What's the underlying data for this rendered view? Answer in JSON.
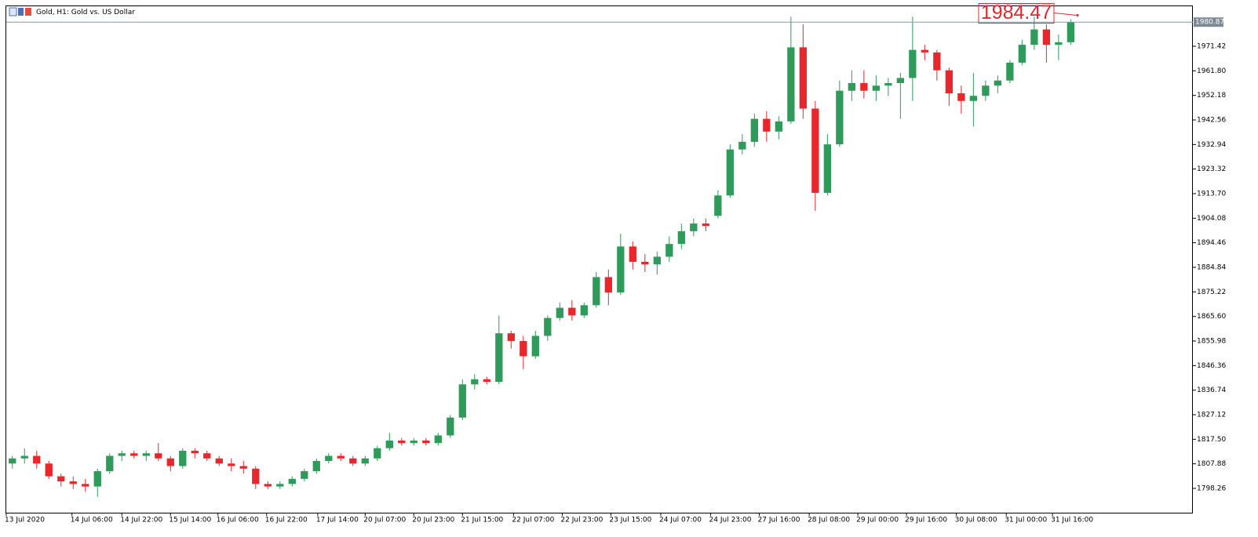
{
  "chart_data": {
    "type": "candlestick",
    "title": "Gold, H1:  Gold vs. US Dollar",
    "up_color": "#2e9b5a",
    "down_color": "#e8262b",
    "grid": false,
    "ylim": [
      1788.74,
      1987.08
    ],
    "yticks": [
      {
        "value": 1798.26,
        "label": "1798.26"
      },
      {
        "value": 1807.88,
        "label": "1807.88"
      },
      {
        "value": 1817.5,
        "label": "1817.50"
      },
      {
        "value": 1827.12,
        "label": "1827.12"
      },
      {
        "value": 1836.74,
        "label": "1836.74"
      },
      {
        "value": 1846.36,
        "label": "1846.36"
      },
      {
        "value": 1855.98,
        "label": "1855.98"
      },
      {
        "value": 1865.6,
        "label": "1865.60"
      },
      {
        "value": 1875.22,
        "label": "1875.22"
      },
      {
        "value": 1884.84,
        "label": "1884.84"
      },
      {
        "value": 1894.46,
        "label": "1894.46"
      },
      {
        "value": 1904.08,
        "label": "1904.08"
      },
      {
        "value": 1913.7,
        "label": "1913.70"
      },
      {
        "value": 1923.32,
        "label": "1923.32"
      },
      {
        "value": 1932.94,
        "label": "1932.94"
      },
      {
        "value": 1942.56,
        "label": "1942.56"
      },
      {
        "value": 1952.18,
        "label": "1952.18"
      },
      {
        "value": 1961.8,
        "label": "1961.80"
      },
      {
        "value": 1971.42,
        "label": "1971.42"
      }
    ],
    "xlim": [
      0,
      88.25
    ],
    "xticks": [
      {
        "value": 0,
        "label": "13 Jul 2020"
      },
      {
        "value": 5.4,
        "label": "14 Jul 06:00"
      },
      {
        "value": 9.5,
        "label": "14 Jul 22:00"
      },
      {
        "value": 13.5,
        "label": "15 Jul 14:00"
      },
      {
        "value": 17.4,
        "label": "16 Jul 06:00"
      },
      {
        "value": 21.4,
        "label": "16 Jul 22:00"
      },
      {
        "value": 25.6,
        "label": "17 Jul 14:00"
      },
      {
        "value": 29.5,
        "label": "20 Jul 07:00"
      },
      {
        "value": 33.5,
        "label": "20 Jul 23:00"
      },
      {
        "value": 37.5,
        "label": "21 Jul 15:00"
      },
      {
        "value": 41.7,
        "label": "22 Jul 07:00"
      },
      {
        "value": 45.7,
        "label": "22 Jul 23:00"
      },
      {
        "value": 49.7,
        "label": "23 Jul 15:00"
      },
      {
        "value": 53.8,
        "label": "24 Jul 07:00"
      },
      {
        "value": 57.9,
        "label": "24 Jul 23:00"
      },
      {
        "value": 61.9,
        "label": "27 Jul 16:00"
      },
      {
        "value": 66,
        "label": "28 Jul 08:00"
      },
      {
        "value": 70,
        "label": "29 Jul 00:00"
      },
      {
        "value": 74,
        "label": "29 Jul 16:00"
      },
      {
        "value": 78.1,
        "label": "30 Jul 08:00"
      },
      {
        "value": 82.2,
        "label": "31 Jul 00:00"
      },
      {
        "value": 86,
        "label": "31 Jul 16:00"
      }
    ],
    "current_price": 1980.87,
    "price_annotation": 1984.47,
    "candles": [
      [
        1808,
        1811,
        1806,
        1810
      ],
      [
        1810,
        1814,
        1808,
        1811
      ],
      [
        1811,
        1813,
        1806,
        1808
      ],
      [
        1808,
        1809,
        1802,
        1803
      ],
      [
        1803,
        1804,
        1799,
        1801
      ],
      [
        1801,
        1803,
        1798,
        1800
      ],
      [
        1800,
        1802,
        1797,
        1799
      ],
      [
        1799,
        1806,
        1795,
        1805
      ],
      [
        1805,
        1812,
        1804,
        1811
      ],
      [
        1811,
        1813,
        1809,
        1812
      ],
      [
        1812,
        1813,
        1810,
        1811
      ],
      [
        1811,
        1813,
        1809,
        1812
      ],
      [
        1812,
        1816,
        1809,
        1810
      ],
      [
        1810,
        1811,
        1805,
        1807
      ],
      [
        1807,
        1814,
        1806,
        1813
      ],
      [
        1813,
        1814,
        1810,
        1812
      ],
      [
        1812,
        1813,
        1809,
        1810
      ],
      [
        1810,
        1811,
        1807,
        1808
      ],
      [
        1808,
        1810,
        1805,
        1807
      ],
      [
        1807,
        1809,
        1804,
        1806
      ],
      [
        1806,
        1807,
        1798,
        1800
      ],
      [
        1800,
        1801,
        1798,
        1799
      ],
      [
        1799,
        1801,
        1798,
        1800
      ],
      [
        1800,
        1803,
        1799,
        1802
      ],
      [
        1802,
        1806,
        1801,
        1805
      ],
      [
        1805,
        1810,
        1804,
        1809
      ],
      [
        1809,
        1812,
        1808,
        1811
      ],
      [
        1811,
        1812,
        1809,
        1810
      ],
      [
        1810,
        1811,
        1807,
        1808
      ],
      [
        1808,
        1811,
        1807,
        1810
      ],
      [
        1810,
        1815,
        1809,
        1814
      ],
      [
        1814,
        1820,
        1813,
        1817
      ],
      [
        1817,
        1818,
        1815,
        1816
      ],
      [
        1816,
        1818,
        1815,
        1817
      ],
      [
        1817,
        1818,
        1815,
        1816
      ],
      [
        1816,
        1820,
        1815,
        1819
      ],
      [
        1819,
        1827,
        1818,
        1826
      ],
      [
        1826,
        1841,
        1825,
        1839
      ],
      [
        1839,
        1843,
        1837,
        1841
      ],
      [
        1841,
        1842,
        1839,
        1840
      ],
      [
        1840,
        1866,
        1839,
        1859
      ],
      [
        1859,
        1860,
        1853,
        1856
      ],
      [
        1856,
        1858,
        1845,
        1850
      ],
      [
        1850,
        1860,
        1849,
        1858
      ],
      [
        1858,
        1866,
        1856,
        1865
      ],
      [
        1865,
        1871,
        1864,
        1869
      ],
      [
        1869,
        1872,
        1864,
        1866
      ],
      [
        1866,
        1871,
        1865,
        1870
      ],
      [
        1870,
        1883,
        1869,
        1881
      ],
      [
        1881,
        1884,
        1870,
        1875
      ],
      [
        1875,
        1898,
        1874,
        1893
      ],
      [
        1893,
        1895,
        1884,
        1887
      ],
      [
        1887,
        1890,
        1883,
        1886
      ],
      [
        1886,
        1891,
        1882,
        1889
      ],
      [
        1889,
        1897,
        1887,
        1894
      ],
      [
        1894,
        1902,
        1892,
        1899
      ],
      [
        1899,
        1904,
        1897,
        1902
      ],
      [
        1902,
        1904,
        1899,
        1901
      ],
      [
        1905,
        1915,
        1904,
        1913
      ],
      [
        1913,
        1933,
        1912,
        1931
      ],
      [
        1931,
        1937,
        1929,
        1934
      ],
      [
        1934,
        1945,
        1932,
        1943
      ],
      [
        1943,
        1946,
        1934,
        1938
      ],
      [
        1938,
        1944,
        1935,
        1942
      ],
      [
        1942,
        1983,
        1941,
        1971
      ],
      [
        1971,
        1980,
        1943,
        1947
      ],
      [
        1947,
        1950,
        1907,
        1914
      ],
      [
        1914,
        1937,
        1913,
        1933
      ],
      [
        1933,
        1958,
        1932,
        1954
      ],
      [
        1954,
        1962,
        1950,
        1957
      ],
      [
        1957,
        1962,
        1951,
        1954
      ],
      [
        1954,
        1960,
        1950,
        1956
      ],
      [
        1956,
        1959,
        1952,
        1957
      ],
      [
        1957,
        1961,
        1943,
        1959
      ],
      [
        1959,
        1983,
        1950,
        1970
      ],
      [
        1970,
        1972,
        1966,
        1969
      ],
      [
        1969,
        1970,
        1958,
        1962
      ],
      [
        1962,
        1963,
        1948,
        1953
      ],
      [
        1953,
        1956,
        1945,
        1950
      ],
      [
        1950,
        1961,
        1940,
        1952
      ],
      [
        1952,
        1958,
        1950,
        1956
      ],
      [
        1956,
        1960,
        1953,
        1958
      ],
      [
        1958,
        1966,
        1957,
        1965
      ],
      [
        1965,
        1974,
        1964,
        1972
      ],
      [
        1972,
        1983,
        1970,
        1978
      ],
      [
        1978,
        1980,
        1965,
        1972
      ],
      [
        1972,
        1976,
        1966,
        1973
      ],
      [
        1973,
        1982,
        1972,
        1980.87
      ]
    ]
  }
}
